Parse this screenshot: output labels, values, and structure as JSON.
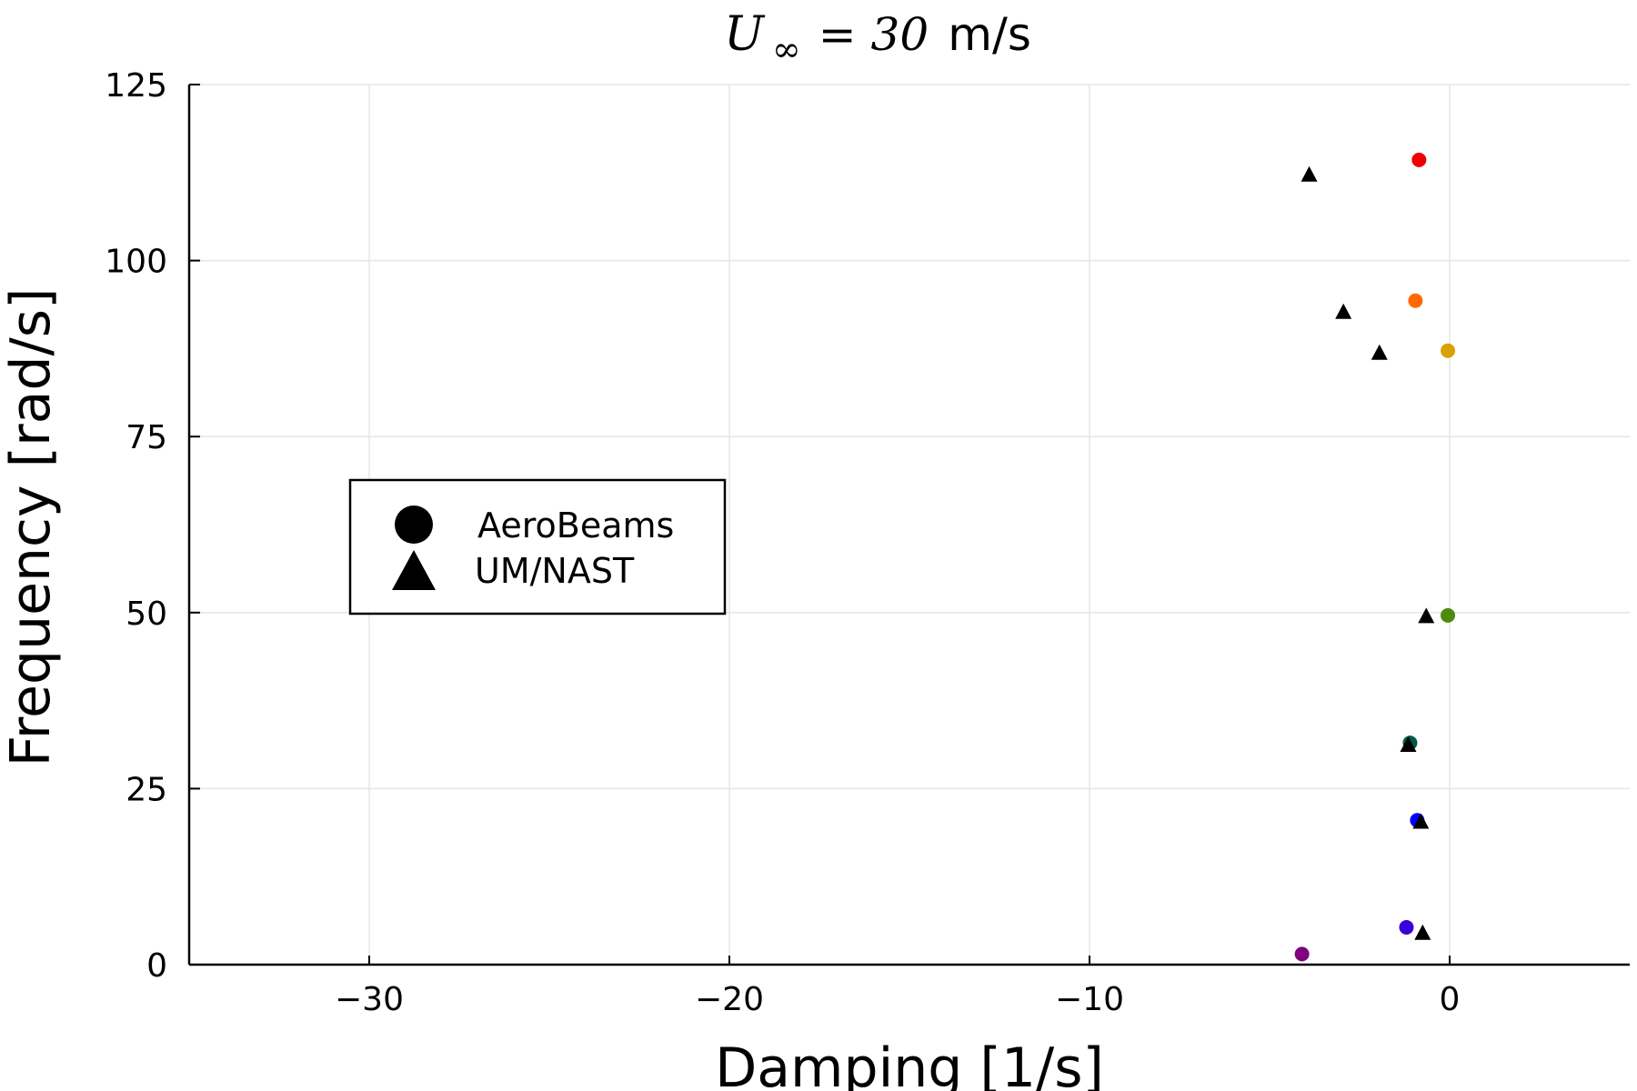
{
  "chart_data": {
    "type": "scatter",
    "title": {
      "symbol": "U",
      "subscript": "∞",
      "relation": "= 30",
      "unit": "m/s"
    },
    "xlabel": "Damping [1/s]",
    "ylabel": "Frequency [rad/s]",
    "xlim": [
      -35,
      5
    ],
    "ylim": [
      0,
      125
    ],
    "x_ticks": [
      -30,
      -20,
      -10,
      0
    ],
    "x_tick_labels": [
      "−30",
      "−20",
      "−10",
      "0"
    ],
    "y_ticks": [
      0,
      25,
      50,
      75,
      100,
      125
    ],
    "y_tick_labels": [
      "0",
      "25",
      "50",
      "75",
      "100",
      "125"
    ],
    "grid": true,
    "legend_position": "center-left",
    "series": [
      {
        "name": "AeroBeams",
        "marker": "circle",
        "legend_color": "#000000",
        "points": [
          {
            "x": -4.1,
            "y": 1.5,
            "color": "#800080"
          },
          {
            "x": -1.2,
            "y": 5.3,
            "color": "#3a00d6"
          },
          {
            "x": -0.9,
            "y": 20.5,
            "color": "#0000ff"
          },
          {
            "x": -1.1,
            "y": 31.5,
            "color": "#005a4a"
          },
          {
            "x": -0.05,
            "y": 49.6,
            "color": "#4e8a0e"
          },
          {
            "x": -0.05,
            "y": 87.2,
            "color": "#daa000"
          },
          {
            "x": -0.95,
            "y": 94.3,
            "color": "#ff6a00"
          },
          {
            "x": -0.85,
            "y": 114.3,
            "color": "#ee0000"
          }
        ]
      },
      {
        "name": "UM/NAST",
        "marker": "triangle",
        "legend_color": "#000000",
        "points": [
          {
            "x": -0.75,
            "y": 4.5,
            "color": "#000000"
          },
          {
            "x": -0.8,
            "y": 20.3,
            "color": "#000000"
          },
          {
            "x": -1.15,
            "y": 31.2,
            "color": "#000000"
          },
          {
            "x": -0.65,
            "y": 49.5,
            "color": "#000000"
          },
          {
            "x": -1.95,
            "y": 86.9,
            "color": "#000000"
          },
          {
            "x": -2.95,
            "y": 92.7,
            "color": "#000000"
          },
          {
            "x": -3.9,
            "y": 112.2,
            "color": "#000000"
          }
        ]
      }
    ]
  }
}
